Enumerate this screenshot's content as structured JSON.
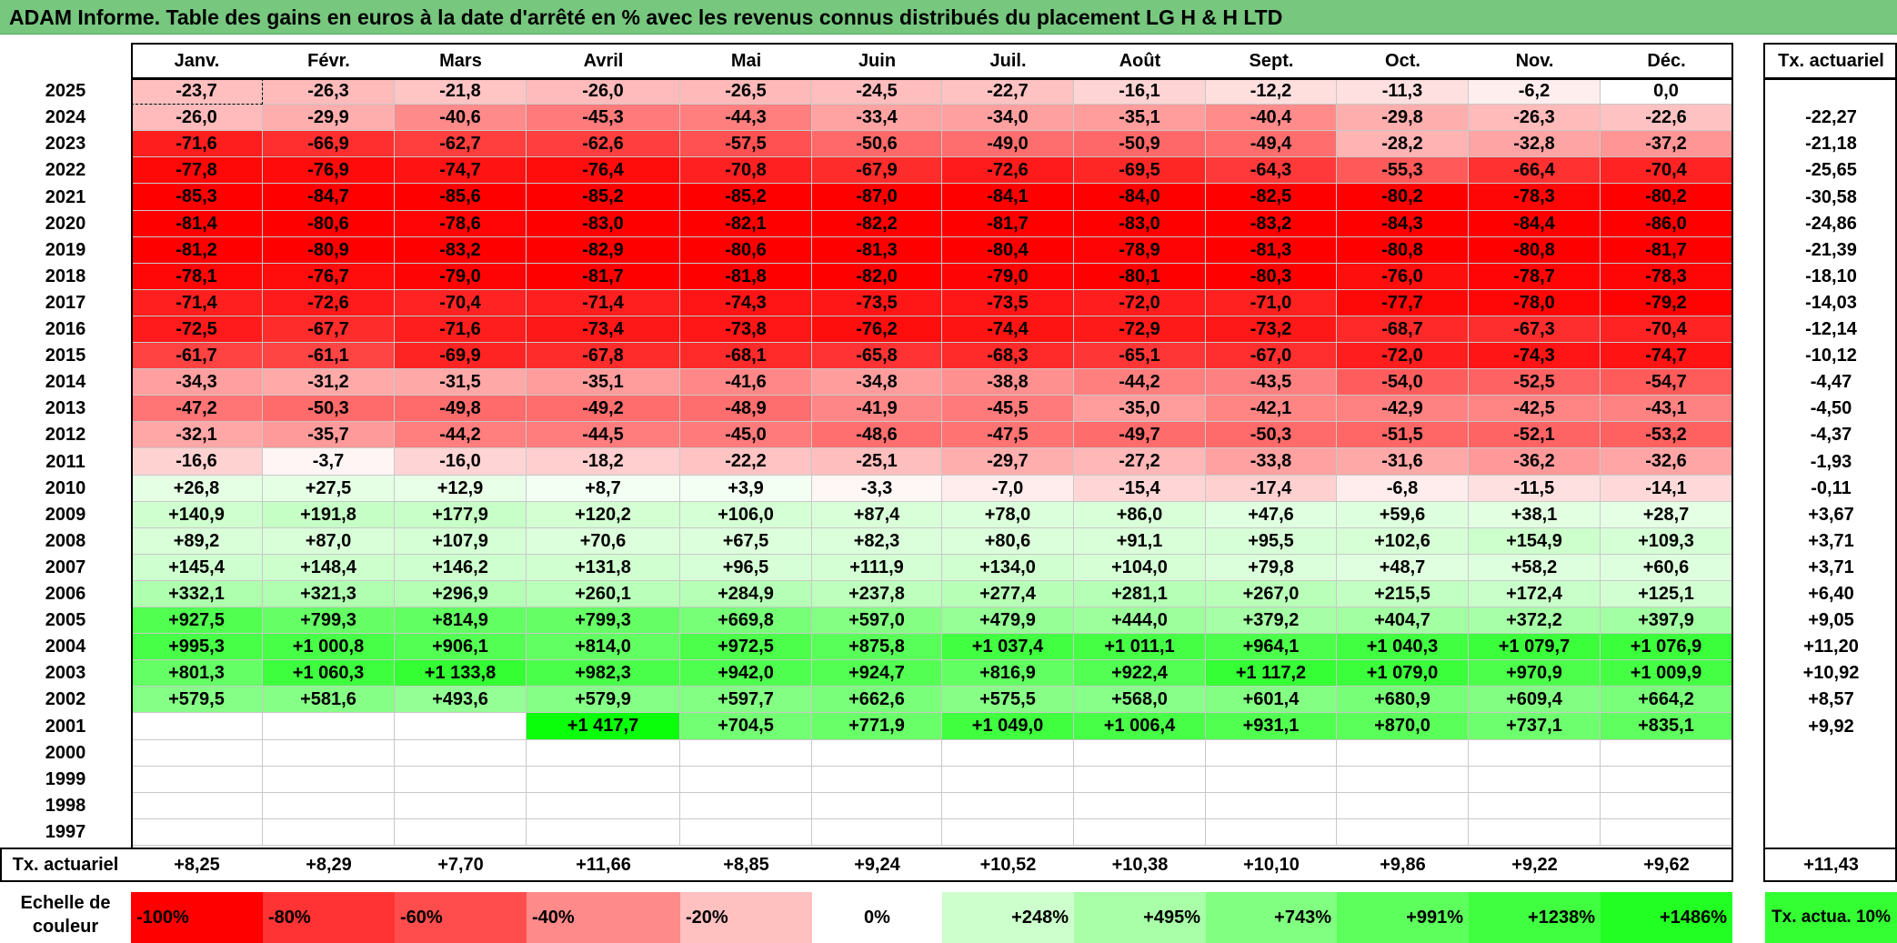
{
  "title": "ADAM Informe. Table des gains en euros à la date d'arrêté en % avec les revenus connus distribués du placement LG H & H LTD",
  "months": [
    "Janv.",
    "Févr.",
    "Mars",
    "Avril",
    "Mai",
    "Juin",
    "Juil.",
    "Août",
    "Sept.",
    "Oct.",
    "Nov.",
    "Déc."
  ],
  "tx_header": "Tx. actuariel",
  "rows": [
    {
      "year": "2025",
      "values": [
        "-23,7",
        "-26,3",
        "-21,8",
        "-26,0",
        "-26,5",
        "-24,5",
        "-22,7",
        "-16,1",
        "-12,2",
        "-11,3",
        "-6,2",
        "0,0"
      ],
      "tx": ""
    },
    {
      "year": "2024",
      "values": [
        "-26,0",
        "-29,9",
        "-40,6",
        "-45,3",
        "-44,3",
        "-33,4",
        "-34,0",
        "-35,1",
        "-40,4",
        "-29,8",
        "-26,3",
        "-22,6"
      ],
      "tx": "-22,27"
    },
    {
      "year": "2023",
      "values": [
        "-71,6",
        "-66,9",
        "-62,7",
        "-62,6",
        "-57,5",
        "-50,6",
        "-49,0",
        "-50,9",
        "-49,4",
        "-28,2",
        "-32,8",
        "-37,2"
      ],
      "tx": "-21,18"
    },
    {
      "year": "2022",
      "values": [
        "-77,8",
        "-76,9",
        "-74,7",
        "-76,4",
        "-70,8",
        "-67,9",
        "-72,6",
        "-69,5",
        "-64,3",
        "-55,3",
        "-66,4",
        "-70,4"
      ],
      "tx": "-25,65"
    },
    {
      "year": "2021",
      "values": [
        "-85,3",
        "-84,7",
        "-85,6",
        "-85,2",
        "-85,2",
        "-87,0",
        "-84,1",
        "-84,0",
        "-82,5",
        "-80,2",
        "-78,3",
        "-80,2"
      ],
      "tx": "-30,58"
    },
    {
      "year": "2020",
      "values": [
        "-81,4",
        "-80,6",
        "-78,6",
        "-83,0",
        "-82,1",
        "-82,2",
        "-81,7",
        "-83,0",
        "-83,2",
        "-84,3",
        "-84,4",
        "-86,0"
      ],
      "tx": "-24,86"
    },
    {
      "year": "2019",
      "values": [
        "-81,2",
        "-80,9",
        "-83,2",
        "-82,9",
        "-80,6",
        "-81,3",
        "-80,4",
        "-78,9",
        "-81,3",
        "-80,8",
        "-80,8",
        "-81,7"
      ],
      "tx": "-21,39"
    },
    {
      "year": "2018",
      "values": [
        "-78,1",
        "-76,7",
        "-79,0",
        "-81,7",
        "-81,8",
        "-82,0",
        "-79,0",
        "-80,1",
        "-80,3",
        "-76,0",
        "-78,7",
        "-78,3"
      ],
      "tx": "-18,10"
    },
    {
      "year": "2017",
      "values": [
        "-71,4",
        "-72,6",
        "-70,4",
        "-71,4",
        "-74,3",
        "-73,5",
        "-73,5",
        "-72,0",
        "-71,0",
        "-77,7",
        "-78,0",
        "-79,2"
      ],
      "tx": "-14,03"
    },
    {
      "year": "2016",
      "values": [
        "-72,5",
        "-67,7",
        "-71,6",
        "-73,4",
        "-73,8",
        "-76,2",
        "-74,4",
        "-72,9",
        "-73,2",
        "-68,7",
        "-67,3",
        "-70,4"
      ],
      "tx": "-12,14"
    },
    {
      "year": "2015",
      "values": [
        "-61,7",
        "-61,1",
        "-69,9",
        "-67,8",
        "-68,1",
        "-65,8",
        "-68,3",
        "-65,1",
        "-67,0",
        "-72,0",
        "-74,3",
        "-74,7"
      ],
      "tx": "-10,12"
    },
    {
      "year": "2014",
      "values": [
        "-34,3",
        "-31,2",
        "-31,5",
        "-35,1",
        "-41,6",
        "-34,8",
        "-38,8",
        "-44,2",
        "-43,5",
        "-54,0",
        "-52,5",
        "-54,7"
      ],
      "tx": "-4,47"
    },
    {
      "year": "2013",
      "values": [
        "-47,2",
        "-50,3",
        "-49,8",
        "-49,2",
        "-48,9",
        "-41,9",
        "-45,5",
        "-35,0",
        "-42,1",
        "-42,9",
        "-42,5",
        "-43,1"
      ],
      "tx": "-4,50"
    },
    {
      "year": "2012",
      "values": [
        "-32,1",
        "-35,7",
        "-44,2",
        "-44,5",
        "-45,0",
        "-48,6",
        "-47,5",
        "-49,7",
        "-50,3",
        "-51,5",
        "-52,1",
        "-53,2"
      ],
      "tx": "-4,37"
    },
    {
      "year": "2011",
      "values": [
        "-16,6",
        "-3,7",
        "-16,0",
        "-18,2",
        "-22,2",
        "-25,1",
        "-29,7",
        "-27,2",
        "-33,8",
        "-31,6",
        "-36,2",
        "-32,6"
      ],
      "tx": "-1,93"
    },
    {
      "year": "2010",
      "values": [
        "+26,8",
        "+27,5",
        "+12,9",
        "+8,7",
        "+3,9",
        "-3,3",
        "-7,0",
        "-15,4",
        "-17,4",
        "-6,8",
        "-11,5",
        "-14,1"
      ],
      "tx": "-0,11"
    },
    {
      "year": "2009",
      "values": [
        "+140,9",
        "+191,8",
        "+177,9",
        "+120,2",
        "+106,0",
        "+87,4",
        "+78,0",
        "+86,0",
        "+47,6",
        "+59,6",
        "+38,1",
        "+28,7"
      ],
      "tx": "+3,67"
    },
    {
      "year": "2008",
      "values": [
        "+89,2",
        "+87,0",
        "+107,9",
        "+70,6",
        "+67,5",
        "+82,3",
        "+80,6",
        "+91,1",
        "+95,5",
        "+102,6",
        "+154,9",
        "+109,3"
      ],
      "tx": "+3,71"
    },
    {
      "year": "2007",
      "values": [
        "+145,4",
        "+148,4",
        "+146,2",
        "+131,8",
        "+96,5",
        "+111,9",
        "+134,0",
        "+104,0",
        "+79,8",
        "+48,7",
        "+58,2",
        "+60,6"
      ],
      "tx": "+3,71"
    },
    {
      "year": "2006",
      "values": [
        "+332,1",
        "+321,3",
        "+296,9",
        "+260,1",
        "+284,9",
        "+237,8",
        "+277,4",
        "+281,1",
        "+267,0",
        "+215,5",
        "+172,4",
        "+125,1"
      ],
      "tx": "+6,40"
    },
    {
      "year": "2005",
      "values": [
        "+927,5",
        "+799,3",
        "+814,9",
        "+799,3",
        "+669,8",
        "+597,0",
        "+479,9",
        "+444,0",
        "+379,2",
        "+404,7",
        "+372,2",
        "+397,9"
      ],
      "tx": "+9,05"
    },
    {
      "year": "2004",
      "values": [
        "+995,3",
        "+1 000,8",
        "+906,1",
        "+814,0",
        "+972,5",
        "+875,8",
        "+1 037,4",
        "+1 011,1",
        "+964,1",
        "+1 040,3",
        "+1 079,7",
        "+1 076,9"
      ],
      "tx": "+11,20"
    },
    {
      "year": "2003",
      "values": [
        "+801,3",
        "+1 060,3",
        "+1 133,8",
        "+982,3",
        "+942,0",
        "+924,7",
        "+816,9",
        "+922,4",
        "+1 117,2",
        "+1 079,0",
        "+970,9",
        "+1 009,9"
      ],
      "tx": "+10,92"
    },
    {
      "year": "2002",
      "values": [
        "+579,5",
        "+581,6",
        "+493,6",
        "+579,9",
        "+597,7",
        "+662,6",
        "+575,5",
        "+568,0",
        "+601,4",
        "+680,9",
        "+609,4",
        "+664,2"
      ],
      "tx": "+8,57"
    },
    {
      "year": "2001",
      "values": [
        "",
        "",
        "",
        "+1 417,7",
        "+704,5",
        "+771,9",
        "+1 049,0",
        "+1 006,4",
        "+931,1",
        "+870,0",
        "+737,1",
        "+835,1"
      ],
      "tx": "+9,92"
    },
    {
      "year": "2000",
      "values": [
        "",
        "",
        "",
        "",
        "",
        "",
        "",
        "",
        "",
        "",
        "",
        ""
      ],
      "tx": ""
    },
    {
      "year": "1999",
      "values": [
        "",
        "",
        "",
        "",
        "",
        "",
        "",
        "",
        "",
        "",
        "",
        ""
      ],
      "tx": ""
    },
    {
      "year": "1998",
      "values": [
        "",
        "",
        "",
        "",
        "",
        "",
        "",
        "",
        "",
        "",
        "",
        ""
      ],
      "tx": ""
    },
    {
      "year": "1997",
      "values": [
        "",
        "",
        "",
        "",
        "",
        "",
        "",
        "",
        "",
        "",
        "",
        ""
      ],
      "tx": ""
    }
  ],
  "footer": {
    "label": "Tx. actuariel",
    "values": [
      "+8,25",
      "+8,29",
      "+7,70",
      "+11,66",
      "+8,85",
      "+9,24",
      "+10,52",
      "+10,38",
      "+10,10",
      "+9,86",
      "+9,22",
      "+9,62"
    ],
    "total": "+11,43"
  },
  "legend": {
    "label": "Echelle de couleur",
    "swatches": [
      {
        "text": "-100%",
        "color": "#ff0000"
      },
      {
        "text": "-80%",
        "color": "#ff3333"
      },
      {
        "text": "-60%",
        "color": "#ff4d4d"
      },
      {
        "text": "-40%",
        "color": "#ff8a8a"
      },
      {
        "text": "-20%",
        "color": "#ffc0c0"
      },
      {
        "text": "0%",
        "color": "#ffffff"
      },
      {
        "text": "+248%",
        "color": "#ccffcc"
      },
      {
        "text": "+495%",
        "color": "#a8ffa8"
      },
      {
        "text": "+743%",
        "color": "#80ff80"
      },
      {
        "text": "+991%",
        "color": "#5cff5c"
      },
      {
        "text": "+1238%",
        "color": "#40ff40"
      },
      {
        "text": "+1486%",
        "color": "#22ff22"
      }
    ],
    "tag": "Tx. actua. 10%",
    "tag_color": "#33ff33"
  }
}
